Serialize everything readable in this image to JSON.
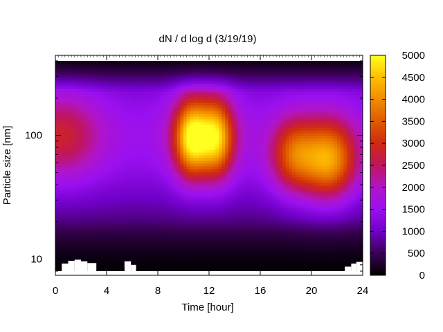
{
  "chart_data": {
    "type": "heatmap",
    "title": "dN / d log d (3/19/19)",
    "xlabel": "Time [hour]",
    "ylabel": "Particle size [nm]",
    "x_range": [
      0,
      24
    ],
    "x_ticks": [
      0,
      4,
      8,
      12,
      16,
      20,
      24
    ],
    "y_scale": "log",
    "y_range": [
      8,
      400
    ],
    "y_ticks": [
      10,
      100
    ],
    "colorbar": {
      "range": [
        0,
        5000
      ],
      "ticks": [
        0,
        500,
        1000,
        1500,
        2000,
        2500,
        3000,
        3500,
        4000,
        4500,
        5000
      ],
      "palette": "black-purple-red-orange-yellow"
    },
    "features": [
      {
        "time_hour": 0.5,
        "size_nm": 100,
        "value": 2700
      },
      {
        "time_hour": 10.5,
        "size_nm": 100,
        "value": 4200
      },
      {
        "time_hour": 12.5,
        "size_nm": 100,
        "value": 3900
      },
      {
        "time_hour": 18.5,
        "size_nm": 70,
        "value": 3000
      },
      {
        "time_hour": 21.5,
        "size_nm": 60,
        "value": 3600
      }
    ],
    "grid": false
  }
}
